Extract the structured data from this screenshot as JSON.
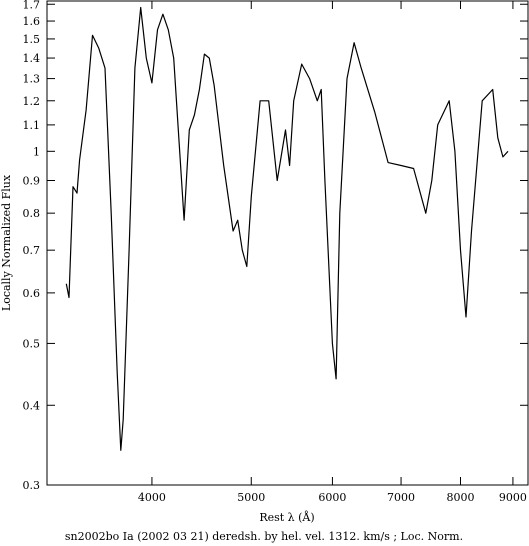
{
  "chart_data": {
    "type": "line",
    "xlabel": "Rest λ (Å)",
    "ylabel": "Locally Normalized Flux",
    "caption": "sn2002bo Ia (2002 03 21) deredsh. by hel. vel.  1312. km/s ;  Loc. Norm.",
    "xlog": true,
    "ylog": true,
    "xlim": [
      3160,
      9310
    ],
    "ylim": [
      0.3,
      1.72
    ],
    "xticks": [
      4000,
      5000,
      6000,
      7000,
      8000,
      9000
    ],
    "yticks": [
      0.3,
      0.4,
      0.5,
      0.6,
      0.7,
      0.8,
      0.9,
      1,
      1.1,
      1.2,
      1.3,
      1.4,
      1.5,
      1.6,
      1.7
    ],
    "color": "#000000",
    "x": [
      3300,
      3320,
      3350,
      3380,
      3400,
      3450,
      3500,
      3550,
      3600,
      3650,
      3700,
      3730,
      3750,
      3800,
      3850,
      3900,
      3950,
      4000,
      4050,
      4100,
      4150,
      4200,
      4300,
      4350,
      4400,
      4450,
      4500,
      4550,
      4600,
      4700,
      4800,
      4850,
      4900,
      4950,
      5000,
      5100,
      5200,
      5300,
      5400,
      5450,
      5500,
      5600,
      5700,
      5800,
      5850,
      5900,
      6000,
      6050,
      6100,
      6200,
      6300,
      6400,
      6600,
      6800,
      7000,
      7200,
      7400,
      7500,
      7600,
      7800,
      7900,
      8000,
      8100,
      8200,
      8400,
      8600,
      8700,
      8800,
      8900
    ],
    "values": [
      0.62,
      0.59,
      0.88,
      0.86,
      0.97,
      1.16,
      1.52,
      1.45,
      1.35,
      0.8,
      0.45,
      0.34,
      0.38,
      0.7,
      1.35,
      1.68,
      1.4,
      1.28,
      1.55,
      1.64,
      1.55,
      1.4,
      0.78,
      1.08,
      1.14,
      1.25,
      1.42,
      1.4,
      1.27,
      0.95,
      0.75,
      0.78,
      0.7,
      0.66,
      0.85,
      1.2,
      1.2,
      0.9,
      1.08,
      0.95,
      1.2,
      1.37,
      1.3,
      1.2,
      1.25,
      0.9,
      0.5,
      0.44,
      0.8,
      1.3,
      1.48,
      1.35,
      1.15,
      0.96,
      0.95,
      0.94,
      0.8,
      0.9,
      1.1,
      1.2,
      1.0,
      0.7,
      0.55,
      0.75,
      1.2,
      1.25,
      1.05,
      0.98,
      1.0
    ]
  }
}
